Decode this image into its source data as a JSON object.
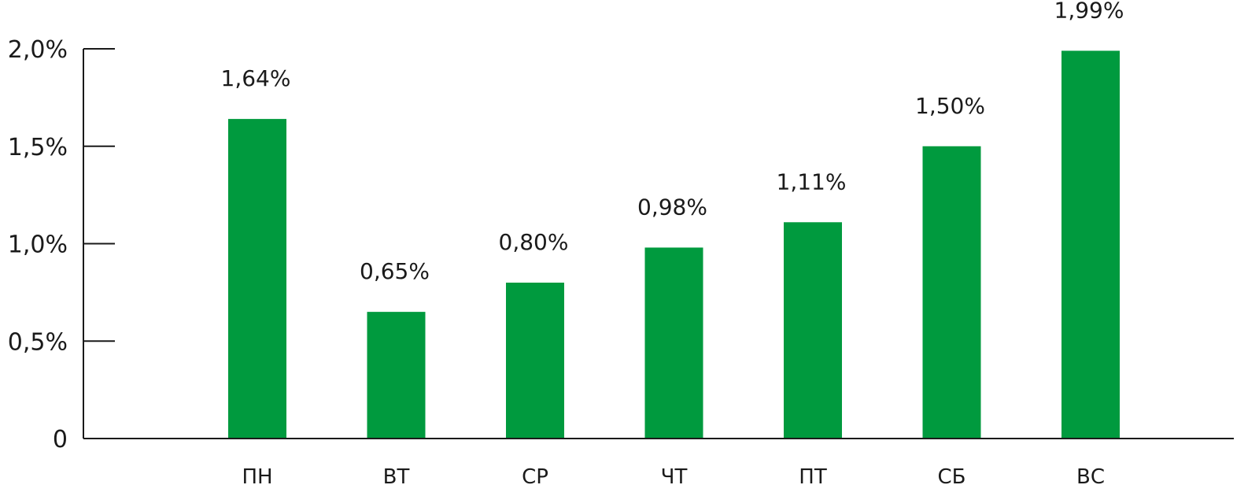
{
  "chart_data": {
    "type": "bar",
    "categories": [
      "ПН",
      "ВТ",
      "СР",
      "ЧТ",
      "ПТ",
      "СБ",
      "ВС"
    ],
    "values": [
      1.64,
      0.65,
      0.8,
      0.98,
      1.11,
      1.5,
      1.99
    ],
    "data_labels": [
      "1,64%",
      "0,65%",
      "0,80%",
      "0,98%",
      "1,11%",
      "1,50%",
      "1,99%"
    ],
    "ylim": [
      0,
      2.0
    ],
    "yticks": [
      0,
      0.5,
      1.0,
      1.5,
      2.0
    ],
    "ytick_labels": [
      "0",
      "0,5%",
      "1,0%",
      "1,5%",
      "2,0%"
    ],
    "bar_color": "#009a3e",
    "axis_color": "#1a1a1a",
    "grid": false,
    "legend": "none"
  }
}
